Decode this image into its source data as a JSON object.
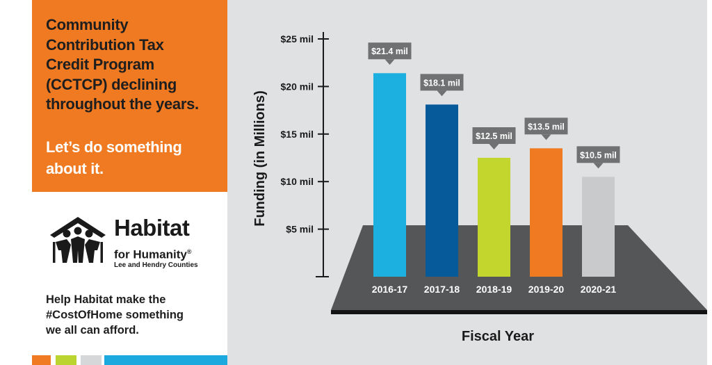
{
  "left_panel": {
    "headline": "Community\nContribution Tax\nCredit Program\n(CCTCP) declining\nthroughout the years.",
    "cta": "Let’s do something\nabout it.",
    "logo": {
      "name": "Habitat",
      "subtitle": "for Humanity",
      "trademark": "®",
      "chapter": "Lee and Hendry Counties"
    },
    "help_text": "Help Habitat make the\n#CostOfHome something\nwe all can afford.",
    "swatch_colors": [
      "#f07a22",
      "#bcd430",
      "#d6d7d9",
      "#1ca9dd"
    ]
  },
  "chart_data": {
    "type": "bar",
    "categories": [
      "2016-17",
      "2017-18",
      "2018-19",
      "2019-20",
      "2020-21"
    ],
    "values": [
      21.4,
      18.1,
      12.5,
      13.5,
      10.5
    ],
    "value_labels": [
      "$21.4 mil",
      "$18.1 mil",
      "$12.5 mil",
      "$13.5 mil",
      "$10.5 mil"
    ],
    "bar_colors": [
      "#1bb0e0",
      "#065a99",
      "#c2d62e",
      "#f07a22",
      "#c9cacc"
    ],
    "xlabel": "Fiscal Year",
    "ylabel": "Funding (in Millions)",
    "yticks": [
      5,
      10,
      15,
      20,
      25
    ],
    "ytick_labels": [
      "$5 mil",
      "$10 mil",
      "$15 mil",
      "$20 mil",
      "$25 mil"
    ],
    "ylim": [
      0,
      25
    ],
    "grid": false
  }
}
